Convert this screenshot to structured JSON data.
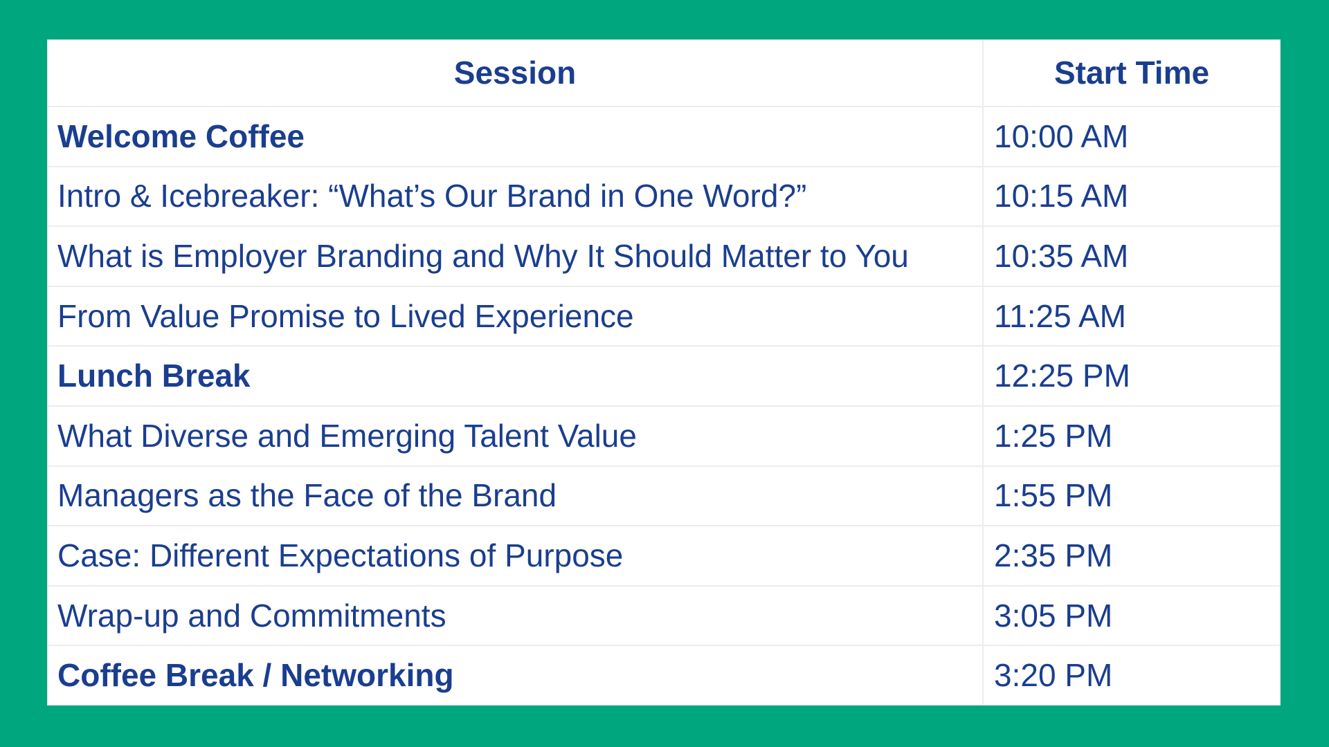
{
  "page": {
    "background_color": "#00A67E",
    "table_background": "#FFFFFF",
    "text_color": "#1A3E8F",
    "divider_color": "#ECECEC"
  },
  "agenda_table": {
    "columns": {
      "session_label": "Session",
      "start_time_label": "Start Time"
    },
    "rows": [
      {
        "session": "Welcome Coffee",
        "start_time": "10:00 AM",
        "bold": true
      },
      {
        "session": "Intro & Icebreaker: “What’s Our Brand in One Word?”",
        "start_time": "10:15 AM",
        "bold": false
      },
      {
        "session": "What is Employer Branding and Why It Should Matter to You",
        "start_time": "10:35 AM",
        "bold": false
      },
      {
        "session": "From Value Promise to Lived Experience",
        "start_time": "11:25 AM",
        "bold": false
      },
      {
        "session": "Lunch Break",
        "start_time": "12:25 PM",
        "bold": true
      },
      {
        "session": "What Diverse and Emerging Talent Value",
        "start_time": "1:25 PM",
        "bold": false
      },
      {
        "session": "Managers as the Face of the Brand",
        "start_time": "1:55 PM",
        "bold": false
      },
      {
        "session": "Case: Different Expectations of Purpose",
        "start_time": "2:35 PM",
        "bold": false
      },
      {
        "session": "Wrap-up and Commitments",
        "start_time": "3:05 PM",
        "bold": false
      },
      {
        "session": "Coffee Break / Networking",
        "start_time": "3:20 PM",
        "bold": true
      }
    ]
  }
}
